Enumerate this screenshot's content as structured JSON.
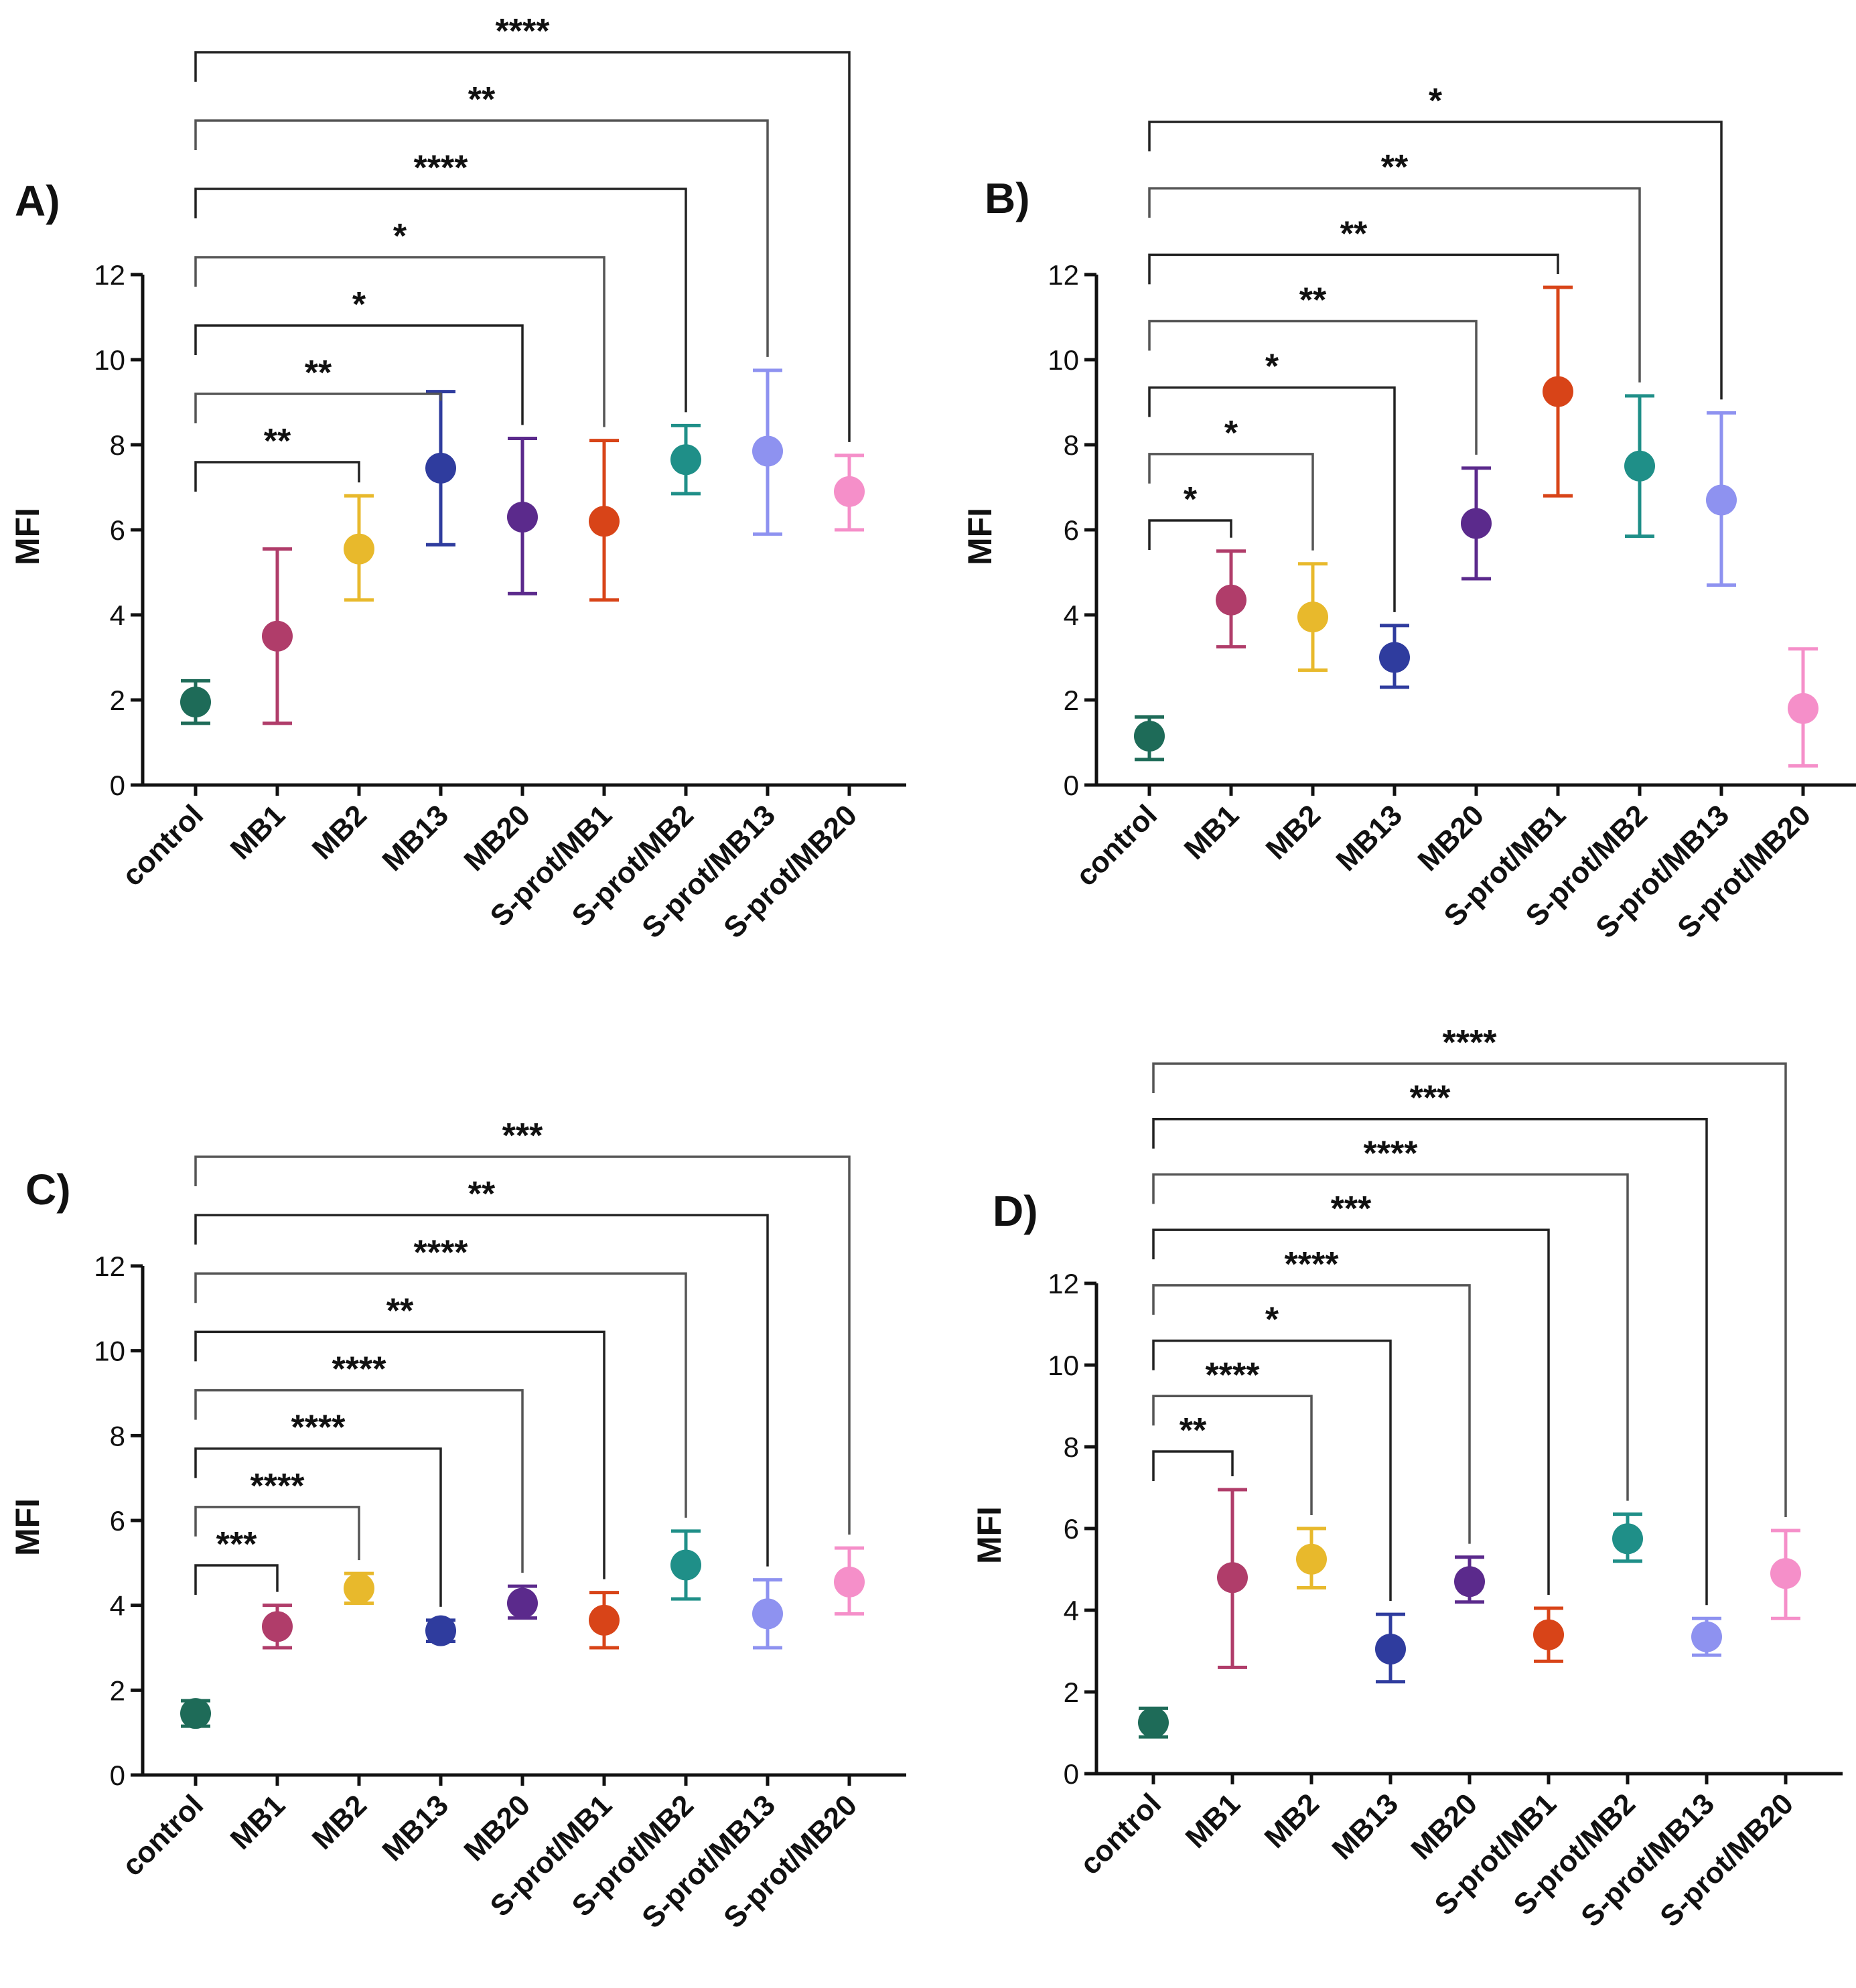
{
  "colors": {
    "control": "#1e6b58",
    "MB1": "#b03d6a",
    "MB2": "#e8b92c",
    "MB13": "#2f3c9e",
    "MB20": "#5b2a8c",
    "S-prot/MB1": "#d84418",
    "S-prot/MB2": "#1f8f88",
    "S-prot/MB13": "#8e92f0",
    "S-prot/MB20": "#f58fc9"
  },
  "chart_data": [
    {
      "type": "scatter",
      "panel": "A)",
      "ylabel": "MFI",
      "ylim": [
        0,
        12
      ],
      "yticks": [
        "0",
        "2",
        "4",
        "6",
        "8",
        "10",
        "12"
      ],
      "categories": [
        "control",
        "MB1",
        "MB2",
        "MB13",
        "MB20",
        "S-prot/MB1",
        "S-prot/MB2",
        "S-prot/MB13",
        "S-prot/MB20"
      ],
      "values": [
        1.95,
        3.5,
        5.55,
        7.45,
        6.3,
        6.2,
        7.65,
        7.85,
        6.9
      ],
      "err_low": [
        1.45,
        1.45,
        4.35,
        5.65,
        4.5,
        4.35,
        6.85,
        5.9,
        6.0
      ],
      "err_high": [
        2.45,
        5.55,
        6.8,
        9.25,
        8.15,
        8.1,
        8.45,
        9.75,
        7.75
      ],
      "comparisons": [
        {
          "target": "MB2",
          "label": "**"
        },
        {
          "target": "MB13",
          "label": "**"
        },
        {
          "target": "MB20",
          "label": "*"
        },
        {
          "target": "S-prot/MB1",
          "label": "*"
        },
        {
          "target": "S-prot/MB2",
          "label": "****"
        },
        {
          "target": "S-prot/MB13",
          "label": "**"
        },
        {
          "target": "S-prot/MB20",
          "label": "****"
        }
      ]
    },
    {
      "type": "scatter",
      "panel": "B)",
      "ylabel": "MFI",
      "ylim": [
        0,
        12
      ],
      "yticks": [
        "0",
        "2",
        "4",
        "6",
        "8",
        "10",
        "12"
      ],
      "categories": [
        "control",
        "MB1",
        "MB2",
        "MB13",
        "MB20",
        "S-prot/MB1",
        "S-prot/MB2",
        "S-prot/MB13",
        "S-prot/MB20"
      ],
      "values": [
        1.15,
        4.35,
        3.95,
        3.0,
        6.15,
        9.25,
        7.5,
        6.7,
        1.8
      ],
      "err_low": [
        0.6,
        3.25,
        2.7,
        2.3,
        4.85,
        6.8,
        5.85,
        4.7,
        0.45
      ],
      "err_high": [
        1.6,
        5.5,
        5.2,
        3.75,
        7.45,
        11.7,
        9.15,
        8.75,
        3.2
      ],
      "comparisons": [
        {
          "target": "MB1",
          "label": "*"
        },
        {
          "target": "MB2",
          "label": "*"
        },
        {
          "target": "MB13",
          "label": "*"
        },
        {
          "target": "MB20",
          "label": "**"
        },
        {
          "target": "S-prot/MB1",
          "label": "**"
        },
        {
          "target": "S-prot/MB2",
          "label": "**"
        },
        {
          "target": "S-prot/MB13",
          "label": "*"
        }
      ]
    },
    {
      "type": "scatter",
      "panel": "C)",
      "ylabel": "MFI",
      "ylim": [
        0,
        12
      ],
      "yticks": [
        "0",
        "2",
        "4",
        "6",
        "8",
        "10",
        "12"
      ],
      "categories": [
        "control",
        "MB1",
        "MB2",
        "MB13",
        "MB20",
        "S-prot/MB1",
        "S-prot/MB2",
        "S-prot/MB13",
        "S-prot/MB20"
      ],
      "values": [
        1.45,
        3.5,
        4.4,
        3.4,
        4.05,
        3.65,
        4.95,
        3.8,
        4.55
      ],
      "err_low": [
        1.15,
        3.0,
        4.05,
        3.15,
        3.7,
        3.0,
        4.15,
        3.0,
        3.8
      ],
      "err_high": [
        1.75,
        4.0,
        4.75,
        3.65,
        4.45,
        4.3,
        5.75,
        4.6,
        5.35
      ],
      "comparisons": [
        {
          "target": "MB1",
          "label": "***"
        },
        {
          "target": "MB2",
          "label": "****"
        },
        {
          "target": "MB13",
          "label": "****"
        },
        {
          "target": "MB20",
          "label": "****"
        },
        {
          "target": "S-prot/MB1",
          "label": "**"
        },
        {
          "target": "S-prot/MB2",
          "label": "****"
        },
        {
          "target": "S-prot/MB13",
          "label": "**"
        },
        {
          "target": "S-prot/MB20",
          "label": "***"
        }
      ]
    },
    {
      "type": "scatter",
      "panel": "D)",
      "ylabel": "MFI",
      "ylim": [
        0,
        12
      ],
      "yticks": [
        "0",
        "2",
        "4",
        "6",
        "8",
        "10",
        "12"
      ],
      "categories": [
        "control",
        "MB1",
        "MB2",
        "MB13",
        "MB20",
        "S-prot/MB1",
        "S-prot/MB2",
        "S-prot/MB13",
        "S-prot/MB20"
      ],
      "values": [
        1.25,
        4.8,
        5.25,
        3.05,
        4.7,
        3.4,
        5.75,
        3.35,
        4.9
      ],
      "err_low": [
        0.9,
        2.6,
        4.55,
        2.25,
        4.2,
        2.75,
        5.2,
        2.9,
        3.8
      ],
      "err_high": [
        1.6,
        6.95,
        6.0,
        3.9,
        5.3,
        4.05,
        6.35,
        3.8,
        5.95
      ],
      "comparisons": [
        {
          "target": "MB1",
          "label": "**"
        },
        {
          "target": "MB2",
          "label": "****"
        },
        {
          "target": "MB13",
          "label": "*"
        },
        {
          "target": "MB20",
          "label": "****"
        },
        {
          "target": "S-prot/MB1",
          "label": "***"
        },
        {
          "target": "S-prot/MB2",
          "label": "****"
        },
        {
          "target": "S-prot/MB13",
          "label": "***"
        },
        {
          "target": "S-prot/MB20",
          "label": "****"
        }
      ]
    }
  ]
}
